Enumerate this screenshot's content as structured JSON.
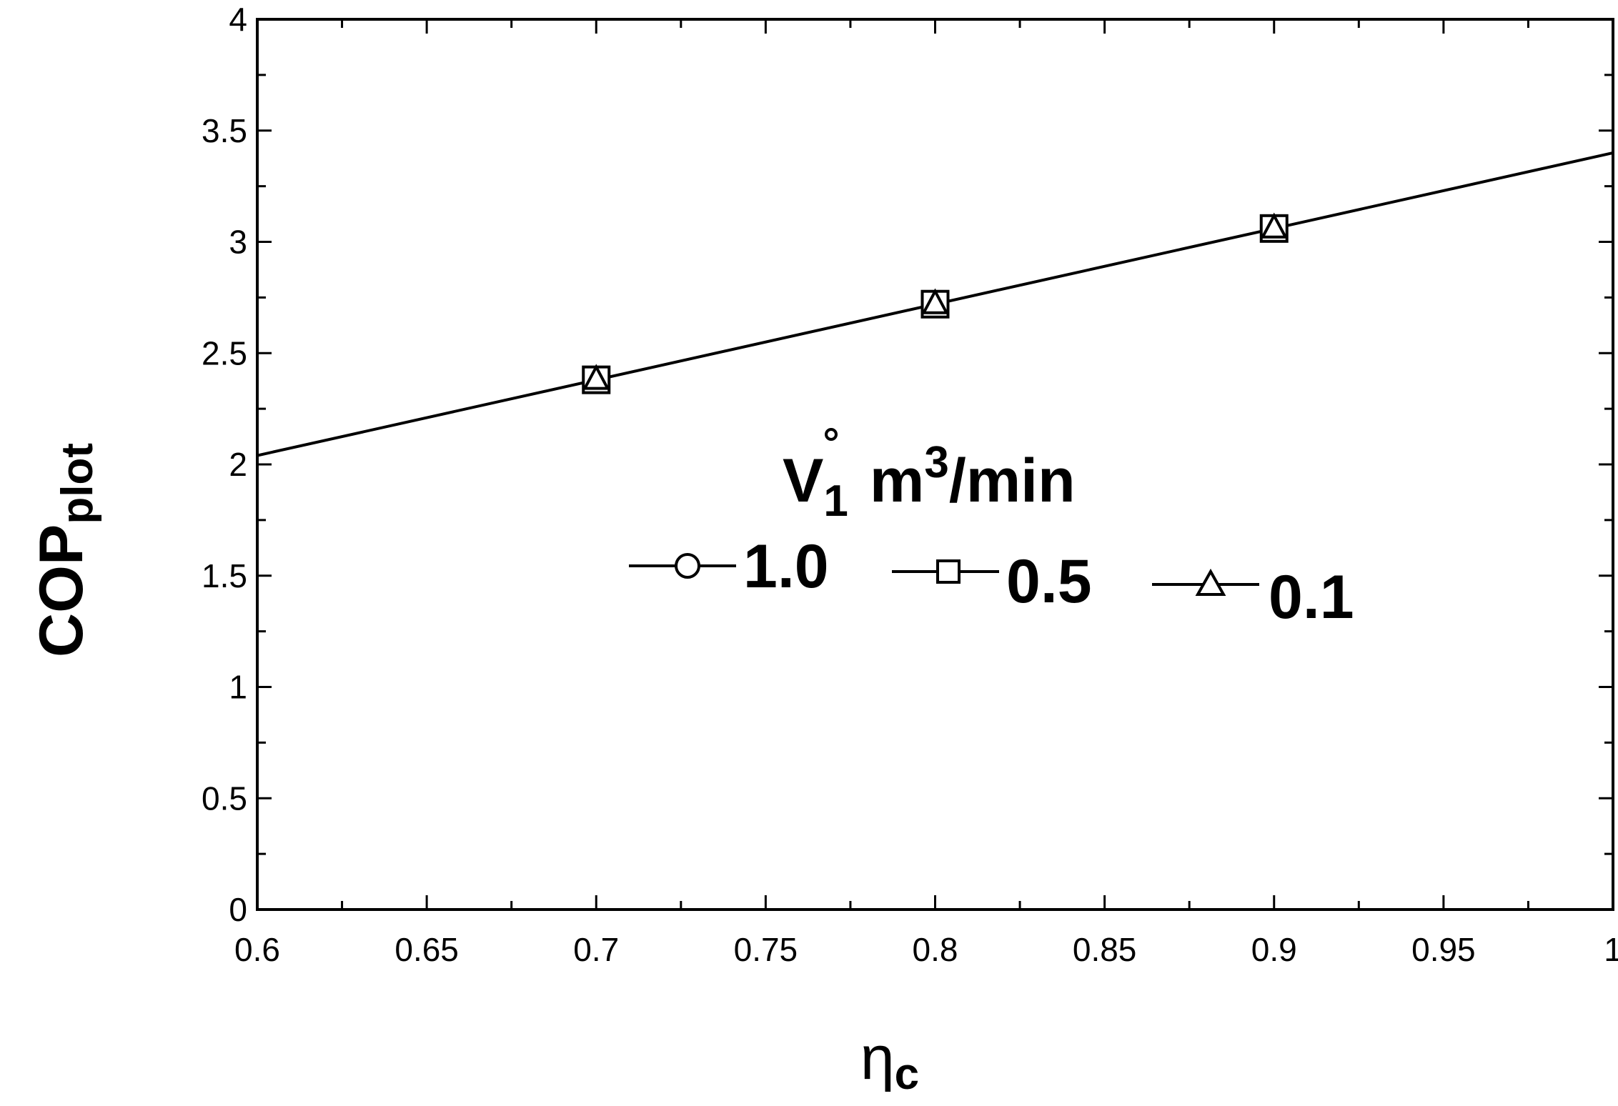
{
  "chart_data": {
    "type": "line",
    "xlabel": {
      "main": "η",
      "sub": "c"
    },
    "ylabel": {
      "main": "COP",
      "sub": "plot"
    },
    "xlim": [
      0.6,
      1.0
    ],
    "ylim": [
      0,
      4
    ],
    "x_major_ticks": [
      0.6,
      0.65,
      0.7,
      0.75,
      0.8,
      0.85,
      0.9,
      0.95,
      1.0
    ],
    "x_tick_labels": [
      "0.6",
      "0.65",
      "0.7",
      "0.75",
      "0.8",
      "0.85",
      "0.9",
      "0.95",
      "1"
    ],
    "y_major_ticks": [
      0,
      0.5,
      1,
      1.5,
      2,
      2.5,
      3,
      3.5,
      4
    ],
    "y_tick_labels": [
      "0",
      "0.5",
      "1",
      "1.5",
      "2",
      "2.5",
      "3",
      "3.5",
      "4"
    ],
    "grid": false,
    "fit_line": {
      "x": [
        0.6,
        1.0
      ],
      "y": [
        2.04,
        3.4
      ]
    },
    "legend": {
      "title": {
        "symbol": "V",
        "sub": "1",
        "unit_pre": "m",
        "sup": "3",
        "unit_post": "/min"
      },
      "placement": "center-right"
    },
    "series": [
      {
        "name": "1.0",
        "marker": "circle",
        "x": [
          0.7,
          0.8,
          0.9
        ],
        "y": [
          2.38,
          2.72,
          3.06
        ]
      },
      {
        "name": "0.5",
        "marker": "square",
        "x": [
          0.7,
          0.8,
          0.9
        ],
        "y": [
          2.38,
          2.72,
          3.06
        ]
      },
      {
        "name": "0.1",
        "marker": "triangle",
        "x": [
          0.7,
          0.8,
          0.9
        ],
        "y": [
          2.38,
          2.72,
          3.06
        ]
      }
    ]
  }
}
